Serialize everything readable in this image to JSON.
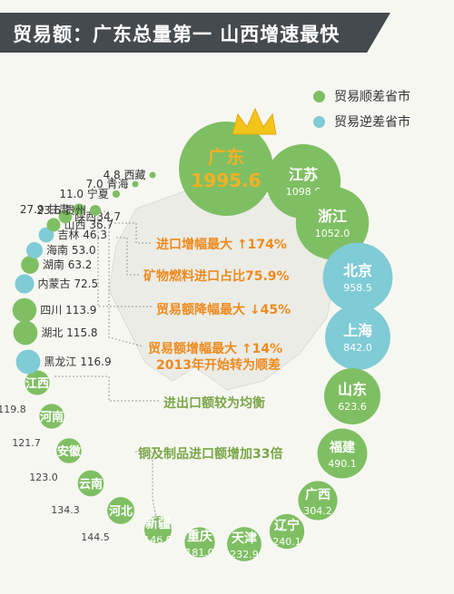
{
  "header": {
    "title": "贸易额：广东总量第一 山西增速最快"
  },
  "legend": [
    {
      "label": "贸易顺差省市",
      "color": "#7fbf63"
    },
    {
      "label": "贸易逆差省市",
      "color": "#7fcbd6"
    }
  ],
  "annotations": [
    {
      "text": "进口增幅最大 ↑174%",
      "color": "orange"
    },
    {
      "text": "矿物燃料进口占比75.9%",
      "color": "orange"
    },
    {
      "text": "贸易额降幅最大 ↓45%",
      "color": "orange"
    },
    {
      "text": "贸易额增幅最大 ↑14%",
      "color": "orange"
    },
    {
      "text": "2013年开始转为顺差",
      "color": "orange"
    },
    {
      "text": "进出口额较为均衡",
      "color": "green"
    },
    {
      "text": "铜及制品进口额增加33倍",
      "color": "green"
    }
  ],
  "chart_data": {
    "type": "bubble",
    "unit": "",
    "highlight": "广东",
    "series": [
      {
        "name": "广东",
        "value": 1995.6,
        "balance": "surplus"
      },
      {
        "name": "江苏",
        "value": 1098.6,
        "balance": "surplus"
      },
      {
        "name": "浙江",
        "value": 1052.0,
        "balance": "surplus"
      },
      {
        "name": "北京",
        "value": 958.5,
        "balance": "deficit"
      },
      {
        "name": "上海",
        "value": 842.0,
        "balance": "deficit"
      },
      {
        "name": "山东",
        "value": 623.6,
        "balance": "surplus"
      },
      {
        "name": "福建",
        "value": 490.1,
        "balance": "surplus"
      },
      {
        "name": "广西",
        "value": 304.2,
        "balance": "surplus"
      },
      {
        "name": "辽宁",
        "value": 240.1,
        "balance": "surplus"
      },
      {
        "name": "天津",
        "value": 232.9,
        "balance": "surplus"
      },
      {
        "name": "重庆",
        "value": 181.0,
        "balance": "surplus"
      },
      {
        "name": "新疆",
        "value": 146.9,
        "balance": "surplus"
      },
      {
        "name": "河北",
        "value": 144.5,
        "balance": "surplus"
      },
      {
        "name": "云南",
        "value": 134.3,
        "balance": "surplus"
      },
      {
        "name": "安徽",
        "value": 123.0,
        "balance": "surplus"
      },
      {
        "name": "河南",
        "value": 121.7,
        "balance": "surplus"
      },
      {
        "name": "江西",
        "value": 119.8,
        "balance": "surplus"
      },
      {
        "name": "黑龙江",
        "value": 116.9,
        "balance": "deficit"
      },
      {
        "name": "湖北",
        "value": 115.8,
        "balance": "surplus"
      },
      {
        "name": "四川",
        "value": 113.9,
        "balance": "surplus"
      },
      {
        "name": "内蒙古",
        "value": 72.5,
        "balance": "deficit"
      },
      {
        "name": "湖南",
        "value": 63.2,
        "balance": "surplus"
      },
      {
        "name": "海南",
        "value": 53.0,
        "balance": "deficit"
      },
      {
        "name": "吉林",
        "value": 46.3,
        "balance": "deficit"
      },
      {
        "name": "山西",
        "value": 36.7,
        "balance": "surplus"
      },
      {
        "name": "陕西",
        "value": 34.7,
        "balance": "surplus"
      },
      {
        "name": "甘肃",
        "value": 27.9,
        "balance": "surplus"
      },
      {
        "name": "贵州",
        "value": 23.6,
        "balance": "surplus"
      },
      {
        "name": "宁夏",
        "value": 11.0,
        "balance": "surplus"
      },
      {
        "name": "青海",
        "value": 7.0,
        "balance": "surplus"
      },
      {
        "name": "西藏",
        "value": 4.8,
        "balance": "surplus"
      }
    ]
  }
}
